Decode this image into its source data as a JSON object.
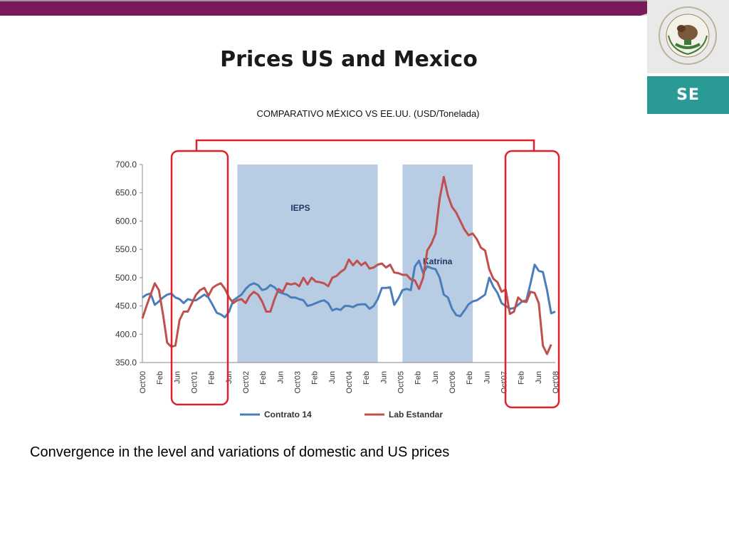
{
  "slide": {
    "title": "Prices US and Mexico",
    "caption": "Convergence in the level and variations of domestic and US prices",
    "logo_text": "SE",
    "seal_text": "ESTADOS UNIDOS MEXICANOS",
    "colors": {
      "band": "#7a1a5a",
      "logo_bg": "#2a9a95",
      "highlight": "#e0202a"
    }
  },
  "chart_data": {
    "type": "line",
    "title": "COMPARATIVO MÉXICO VS EE.UU. (USD/Tonelada)",
    "ylim": [
      350,
      700
    ],
    "yticks": [
      "350.0",
      "400.0",
      "450.0",
      "500.0",
      "550.0",
      "600.0",
      "650.0",
      "700.0"
    ],
    "x_tick_labels": [
      "Oct'00",
      "Feb",
      "Jun",
      "Oct'01",
      "Feb",
      "Jun",
      "Oct'02",
      "Feb",
      "Jun",
      "Oct'03",
      "Feb",
      "Jun",
      "Oct'04",
      "Feb",
      "Jun",
      "Oct'05",
      "Feb",
      "Jun",
      "Oct'06",
      "Feb",
      "Jun",
      "Oct'07",
      "Feb",
      "Jun",
      "Oct'08"
    ],
    "bands": [
      {
        "label": "IEPS",
        "from_month": 23,
        "to_month": 57
      },
      {
        "label": "Katrina",
        "from_month": 63,
        "to_month": 80
      }
    ],
    "grid": false,
    "legend": "bottom",
    "series": [
      {
        "name": "Contrato 14",
        "color": "#4a7ebb",
        "values": [
          465,
          470,
          472,
          452,
          458,
          465,
          470,
          472,
          465,
          462,
          455,
          462,
          460,
          460,
          465,
          470,
          465,
          452,
          438,
          435,
          430,
          440,
          460,
          465,
          470,
          480,
          487,
          490,
          487,
          478,
          480,
          487,
          483,
          475,
          472,
          470,
          465,
          465,
          462,
          460,
          450,
          452,
          455,
          458,
          460,
          455,
          442,
          445,
          443,
          450,
          450,
          448,
          452,
          453,
          453,
          445,
          450,
          462,
          482,
          482,
          483,
          452,
          463,
          478,
          480,
          478,
          520,
          530,
          508,
          520,
          517,
          515,
          500,
          470,
          465,
          445,
          434,
          432,
          442,
          453,
          458,
          460,
          465,
          470,
          500,
          484,
          473,
          455,
          450,
          445,
          446,
          452,
          458,
          460,
          490,
          523,
          512,
          510,
          478,
          437,
          440
        ]
      },
      {
        "name": "Lab Estandar",
        "color": "#c0504d",
        "values": [
          428,
          450,
          470,
          490,
          478,
          435,
          385,
          378,
          380,
          425,
          440,
          440,
          455,
          470,
          478,
          482,
          468,
          482,
          487,
          490,
          480,
          465,
          455,
          460,
          462,
          455,
          468,
          475,
          470,
          458,
          440,
          440,
          462,
          480,
          475,
          490,
          488,
          490,
          485,
          500,
          488,
          500,
          493,
          492,
          490,
          485,
          500,
          503,
          510,
          515,
          532,
          522,
          530,
          522,
          527,
          516,
          518,
          523,
          525,
          518,
          523,
          509,
          508,
          505,
          505,
          497,
          495,
          480,
          500,
          548,
          560,
          578,
          640,
          678,
          645,
          625,
          615,
          600,
          585,
          575,
          578,
          568,
          553,
          548,
          515,
          498,
          492,
          475,
          479,
          436,
          440,
          465,
          458,
          457,
          475,
          473,
          455,
          380,
          365,
          382
        ]
      }
    ]
  }
}
